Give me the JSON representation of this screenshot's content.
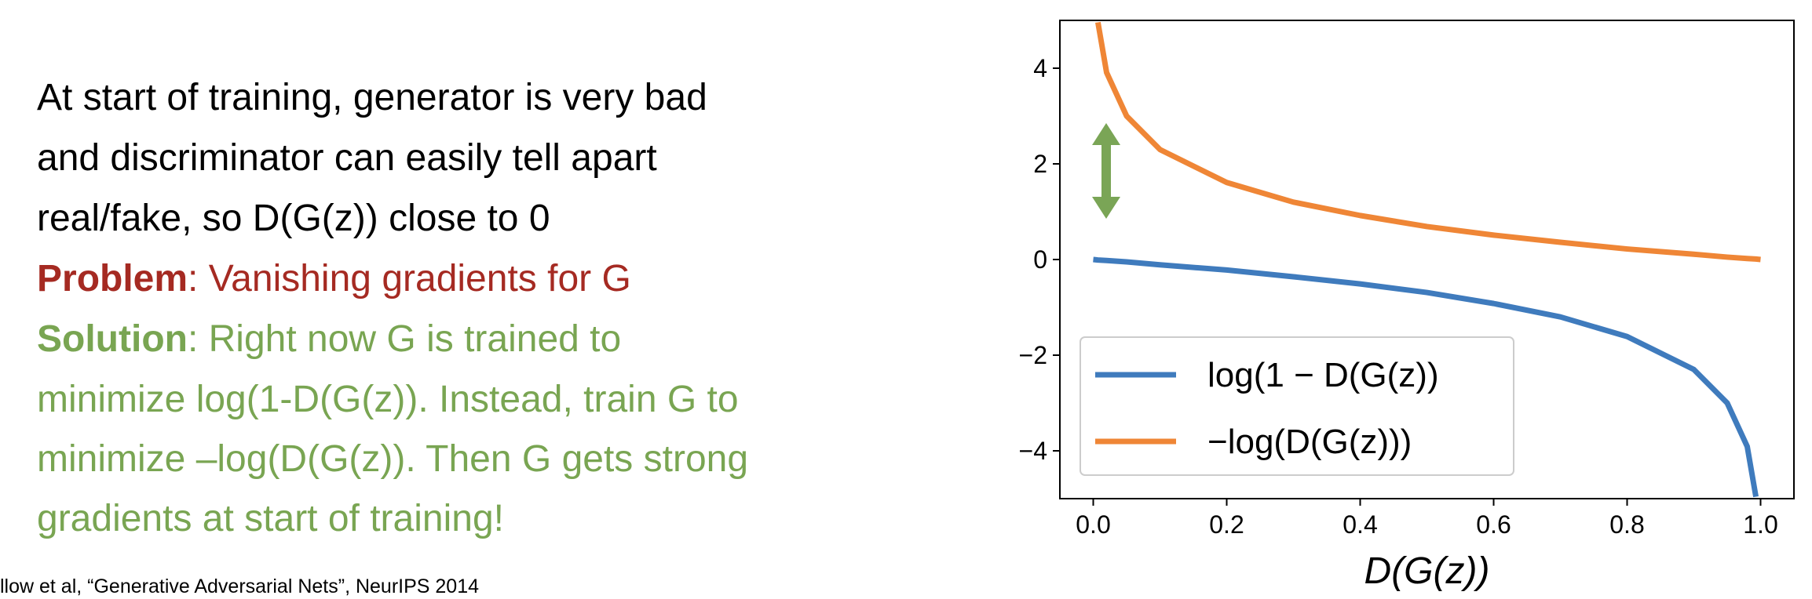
{
  "slide": {
    "intro": [
      "At start of training, generator is very bad",
      "and discriminator can easily tell apart",
      "real/fake, so D(G(z)) close to 0"
    ],
    "problem": {
      "label": "Problem",
      "text": ": Vanishing gradients for G"
    },
    "solution": {
      "label": "Solution",
      "lines": [
        ": Right now G is trained to",
        "minimize log(1-D(G(z)). Instead, train G to",
        "minimize –log(D(G(z)). Then G gets strong",
        "gradients at start of training!"
      ]
    },
    "citation": "llow et al, “Generative Adversarial Nets”, NeurIPS 2014"
  },
  "chart_data": {
    "type": "line",
    "x_label": "D(G(z))",
    "x": [
      0,
      0.007,
      0.02,
      0.05,
      0.1,
      0.2,
      0.3,
      0.4,
      0.5,
      0.6,
      0.7,
      0.8,
      0.9,
      0.95,
      0.98,
      0.993,
      1.0
    ],
    "series": [
      {
        "name": "log(1 − D(G(z))",
        "color": "#3f7bbd",
        "values": [
          0,
          -0.01,
          -0.02,
          -0.05,
          -0.11,
          -0.22,
          -0.36,
          -0.51,
          -0.69,
          -0.92,
          -1.2,
          -1.61,
          -2.3,
          -3.0,
          -3.91,
          -4.96,
          null
        ]
      },
      {
        "name": "−log(D(G(z)))",
        "color": "#ef8636",
        "values": [
          null,
          4.96,
          3.91,
          3.0,
          2.3,
          1.61,
          1.2,
          0.92,
          0.69,
          0.51,
          0.36,
          0.22,
          0.11,
          0.05,
          0.02,
          0.01,
          0
        ]
      }
    ],
    "xlim": [
      -0.05,
      1.05
    ],
    "ylim": [
      -5,
      5
    ],
    "xticks": [
      {
        "value": 0,
        "label": "0.0"
      },
      0.2,
      0.4,
      0.6,
      0.8,
      {
        "value": 1,
        "label": "1.0"
      }
    ],
    "yticks": [
      {
        "value": -4,
        "label": "−4"
      },
      {
        "value": -2,
        "label": "−2"
      },
      0,
      2,
      4
    ],
    "grid": false,
    "legend": "lower-left"
  }
}
